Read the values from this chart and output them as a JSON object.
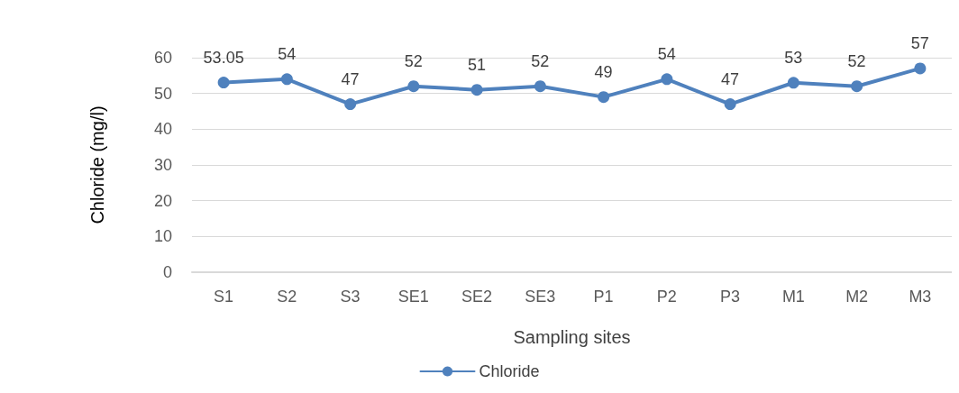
{
  "chart_data": {
    "type": "line",
    "xlabel": "Sampling sites",
    "ylabel": "Chloride (mg/l)",
    "categories": [
      "S1",
      "S2",
      "S3",
      "SE1",
      "SE2",
      "SE3",
      "P1",
      "P2",
      "P3",
      "M1",
      "M2",
      "M3"
    ],
    "series": [
      {
        "name": "Chloride",
        "color": "#4f81bd",
        "values": [
          53.05,
          54,
          47,
          52,
          51,
          52,
          49,
          54,
          47,
          53,
          52,
          57
        ]
      }
    ],
    "ylim": [
      0,
      60
    ],
    "yticks": [
      0,
      10,
      20,
      30,
      40,
      50,
      60
    ],
    "grid": "y",
    "legend": "bottom",
    "marker": "circle",
    "line_style": "solid",
    "data_labels": true
  }
}
